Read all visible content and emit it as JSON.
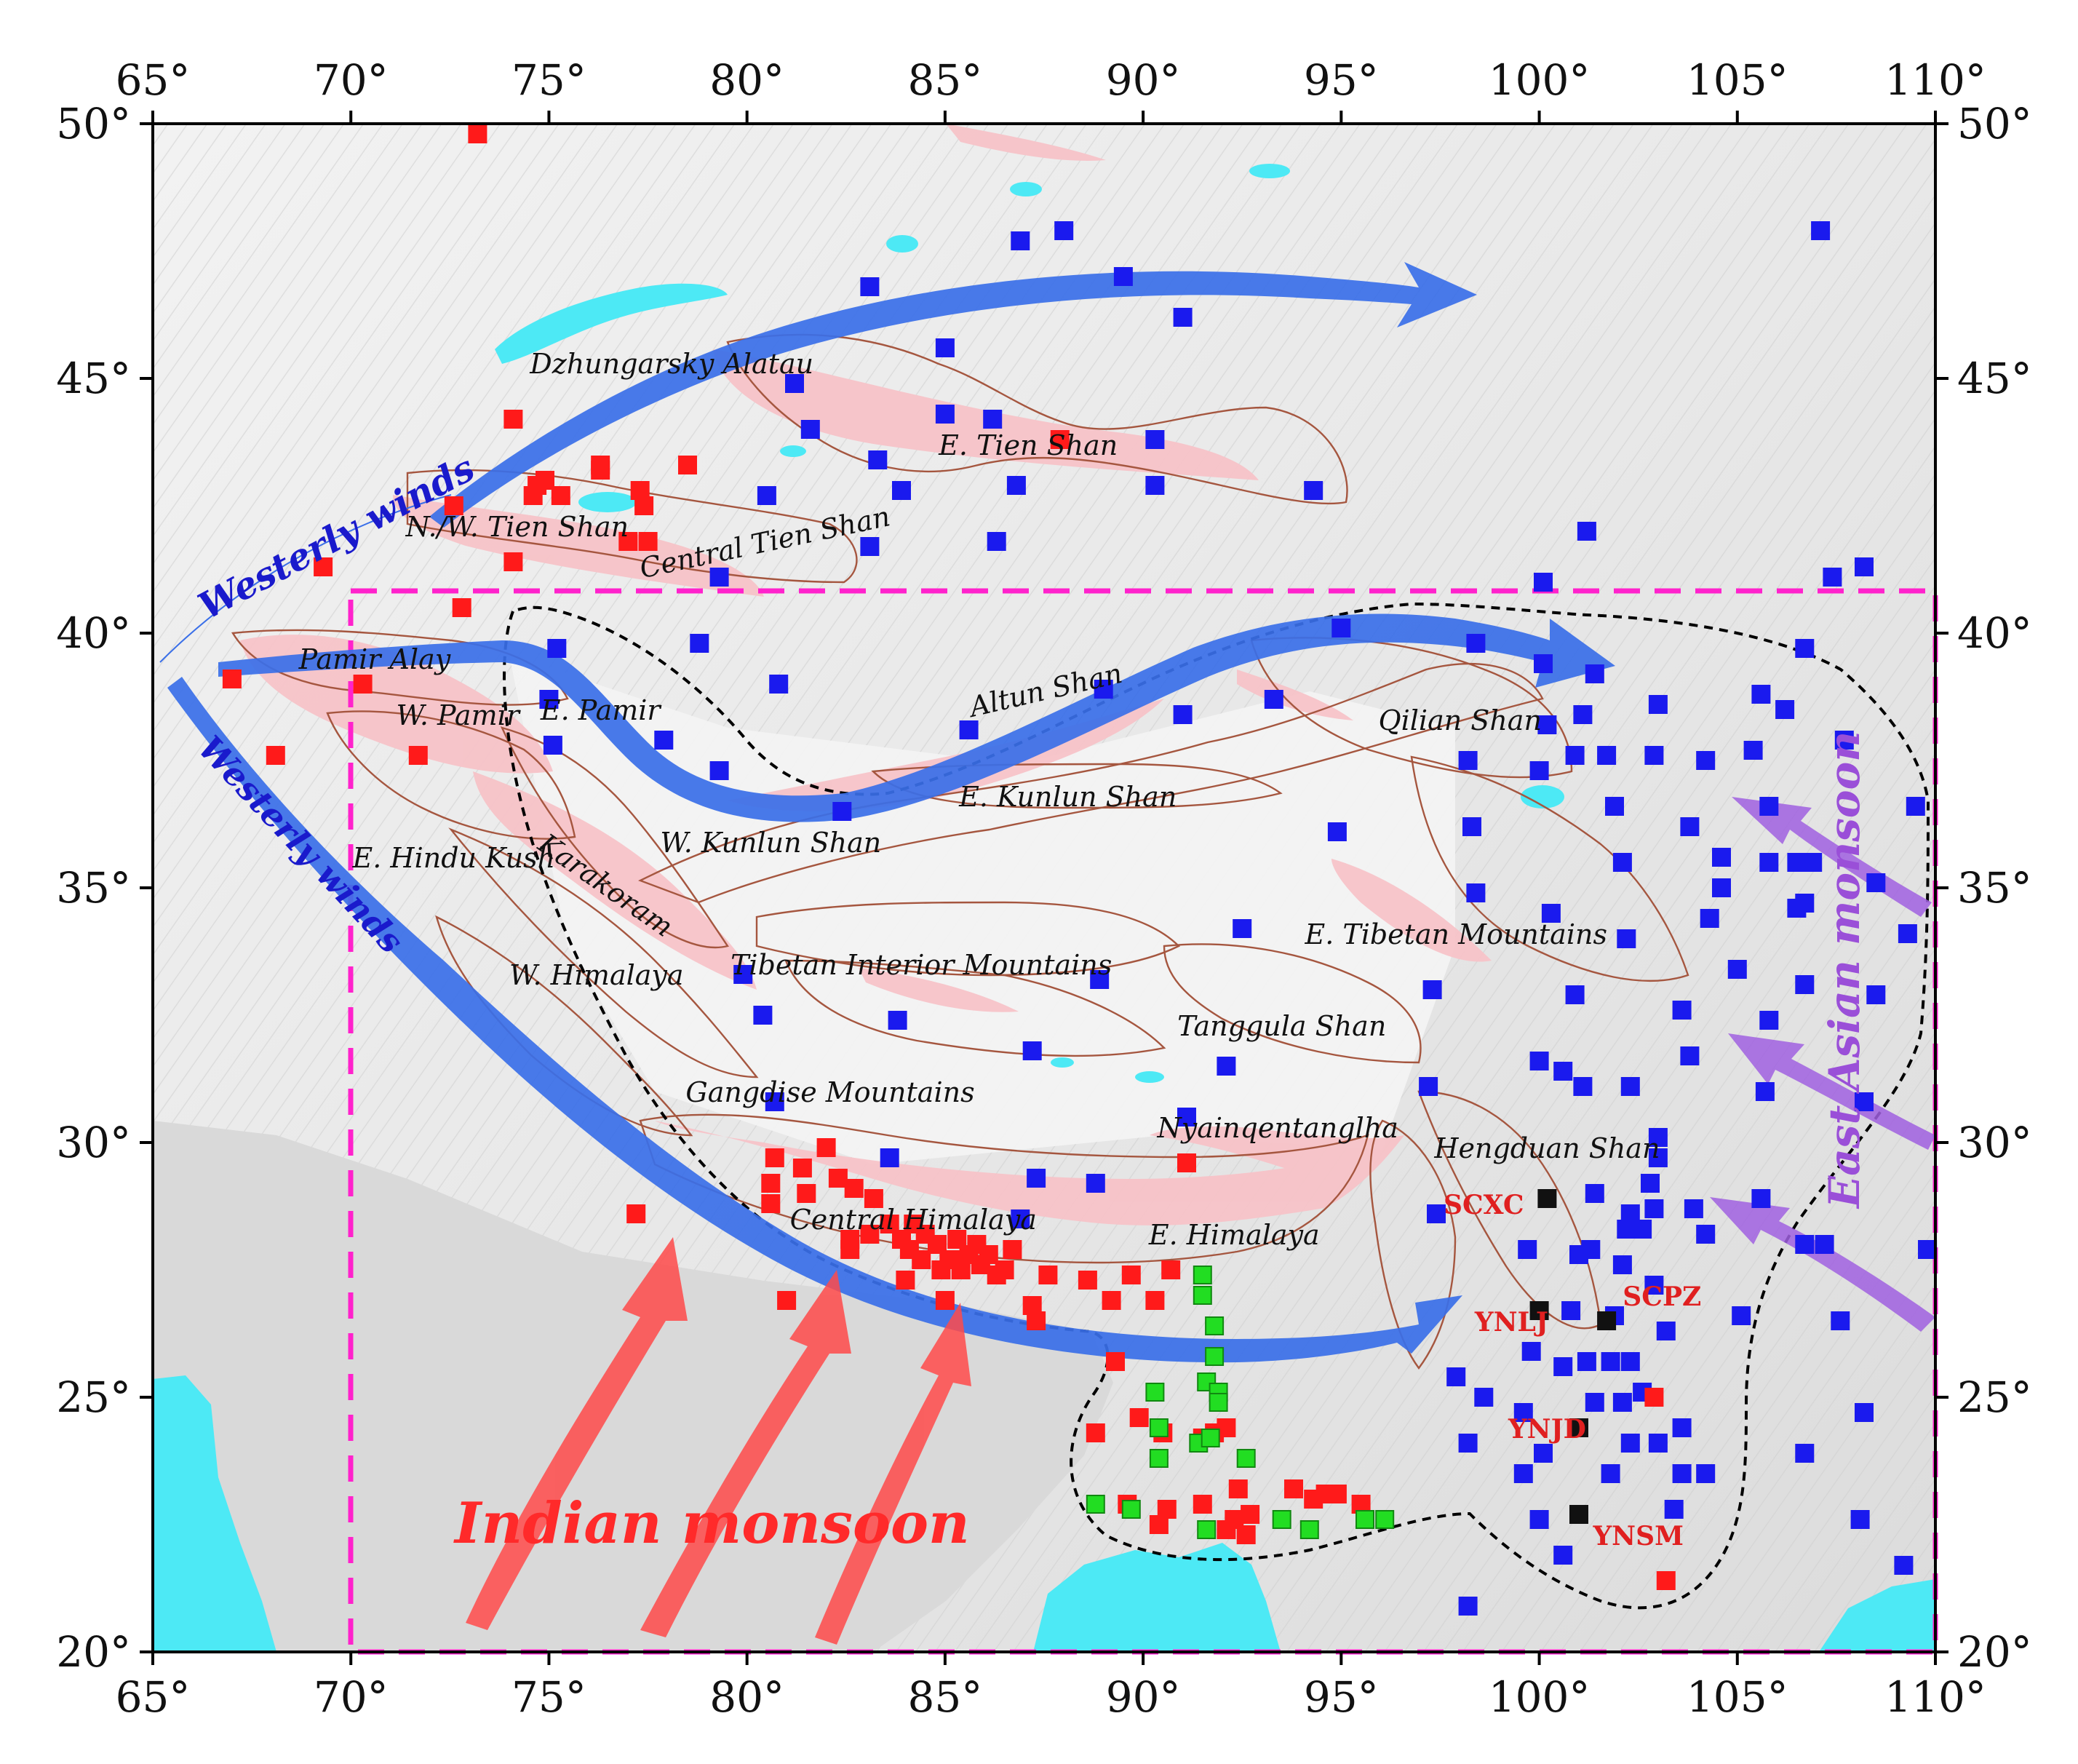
{
  "map": {
    "lon_ticks": [
      "65°",
      "70°",
      "75°",
      "80°",
      "85°",
      "90°",
      "95°",
      "100°",
      "105°",
      "110°"
    ],
    "lat_ticks": [
      "50°",
      "45°",
      "40°",
      "35°",
      "30°",
      "25°",
      "20°"
    ],
    "lon_range": [
      65,
      110
    ],
    "lat_range": [
      20,
      50
    ],
    "colors": {
      "ocean": "#4de9f5",
      "lake": "#4de9f5",
      "glacier": "#f7c3c8",
      "boundary": "#a5563f",
      "frame": "#000000",
      "study_area": "#ff22cc",
      "westerly": "#3a6fe8",
      "indian": "#ff4a4a",
      "east_asian": "#a060e0",
      "station_red": "#ff1a1a",
      "station_blue": "#1a1aee",
      "station_green": "#22dd22",
      "station_black": "#111111"
    },
    "range_labels": [
      {
        "text": "Dzhungarsky Alatau",
        "lon": 78.1,
        "lat": 45.1
      },
      {
        "text": "E. Tien Shan",
        "lon": 87.1,
        "lat": 43.5
      },
      {
        "text": "N./W. Tien Shan",
        "lon": 74.2,
        "lat": 41.9
      },
      {
        "text": "Central Tien Shan",
        "lon": 80.5,
        "lat": 41.6,
        "rotate": -12
      },
      {
        "text": "Pamir Alay",
        "lon": 70.6,
        "lat": 39.3
      },
      {
        "text": "W. Pamir",
        "lon": 72.7,
        "lat": 38.2
      },
      {
        "text": "E. Pamir",
        "lon": 76.3,
        "lat": 38.3
      },
      {
        "text": "Altun Shan",
        "lon": 87.6,
        "lat": 38.7,
        "rotate": -13
      },
      {
        "text": "Qilian Shan",
        "lon": 98.0,
        "lat": 38.1
      },
      {
        "text": "E. Kunlun Shan",
        "lon": 88.1,
        "lat": 36.6
      },
      {
        "text": "W. Kunlun Shan",
        "lon": 80.6,
        "lat": 35.7
      },
      {
        "text": "E. Hindu Kush",
        "lon": 72.6,
        "lat": 35.4
      },
      {
        "text": "Karakoram",
        "lon": 76.3,
        "lat": 34.9,
        "rotate": 35
      },
      {
        "text": "E. Tibetan Mountains",
        "lon": 97.9,
        "lat": 33.9
      },
      {
        "text": "W. Himalaya",
        "lon": 76.2,
        "lat": 33.1
      },
      {
        "text": "Tibetan Interior Mountains",
        "lon": 84.4,
        "lat": 33.3
      },
      {
        "text": "Tanggula Shan",
        "lon": 93.5,
        "lat": 32.1
      },
      {
        "text": "Gangdise Mountains",
        "lon": 82.1,
        "lat": 30.8
      },
      {
        "text": "Nyainqentanglha",
        "lon": 93.4,
        "lat": 30.1
      },
      {
        "text": "Hengduan Shan",
        "lon": 100.2,
        "lat": 29.7
      },
      {
        "text": "Central Himalaya",
        "lon": 84.2,
        "lat": 28.3
      },
      {
        "text": "E. Himalaya",
        "lon": 92.3,
        "lat": 28.0
      }
    ],
    "arrow_labels": {
      "westerly_upper": "Westerly winds",
      "westerly_lower": "Westerly winds",
      "indian": "Indian monsoon",
      "east_asian": "East Asian monsoon"
    },
    "site_labels": [
      {
        "text": "SCXC",
        "lon": 98.6,
        "lat": 28.6
      },
      {
        "text": "SCPZ",
        "lon": 103.1,
        "lat": 26.8
      },
      {
        "text": "YNLJ",
        "lon": 99.3,
        "lat": 26.3
      },
      {
        "text": "YNJD",
        "lon": 100.2,
        "lat": 24.2
      },
      {
        "text": "YNSM",
        "lon": 102.5,
        "lat": 22.1
      }
    ],
    "stations": {
      "red": [
        [
          73.2,
          49.8
        ],
        [
          74.1,
          44.2
        ],
        [
          74.7,
          42.9
        ],
        [
          74.9,
          43.0
        ],
        [
          75.3,
          42.7
        ],
        [
          74.6,
          42.7
        ],
        [
          76.3,
          43.3
        ],
        [
          76.3,
          43.2
        ],
        [
          77.3,
          42.8
        ],
        [
          77.4,
          42.5
        ],
        [
          77.0,
          41.8
        ],
        [
          77.5,
          41.8
        ],
        [
          78.5,
          43.3
        ],
        [
          69.3,
          41.3
        ],
        [
          72.6,
          42.5
        ],
        [
          74.1,
          41.4
        ],
        [
          72.8,
          40.5
        ],
        [
          67.0,
          39.1
        ],
        [
          70.3,
          39.0
        ],
        [
          68.1,
          37.6
        ],
        [
          71.7,
          37.6
        ],
        [
          87.9,
          43.8
        ],
        [
          77.2,
          28.6
        ],
        [
          80.7,
          29.7
        ],
        [
          80.6,
          29.2
        ],
        [
          80.6,
          28.8
        ],
        [
          81.5,
          29.0
        ],
        [
          81.4,
          29.5
        ],
        [
          82.0,
          29.9
        ],
        [
          82.3,
          29.3
        ],
        [
          82.7,
          29.1
        ],
        [
          83.2,
          28.9
        ],
        [
          82.6,
          28.1
        ],
        [
          82.6,
          27.9
        ],
        [
          83.1,
          28.2
        ],
        [
          83.6,
          28.4
        ],
        [
          83.9,
          28.1
        ],
        [
          84.2,
          28.4
        ],
        [
          84.1,
          27.9
        ],
        [
          84.4,
          27.7
        ],
        [
          84.5,
          28.2
        ],
        [
          84.8,
          28.0
        ],
        [
          84.9,
          27.5
        ],
        [
          85.1,
          27.7
        ],
        [
          85.3,
          28.1
        ],
        [
          85.3,
          27.7
        ],
        [
          85.4,
          27.5
        ],
        [
          85.6,
          27.8
        ],
        [
          85.8,
          28.0
        ],
        [
          85.9,
          27.6
        ],
        [
          86.1,
          27.8
        ],
        [
          86.3,
          27.4
        ],
        [
          86.5,
          27.5
        ],
        [
          86.7,
          27.9
        ],
        [
          87.2,
          26.8
        ],
        [
          87.6,
          27.4
        ],
        [
          87.3,
          26.5
        ],
        [
          81.0,
          26.9
        ],
        [
          84.0,
          27.3
        ],
        [
          85.0,
          26.9
        ],
        [
          88.6,
          27.3
        ],
        [
          89.2,
          26.9
        ],
        [
          89.7,
          27.4
        ],
        [
          90.3,
          26.9
        ],
        [
          90.7,
          27.5
        ],
        [
          91.1,
          29.6
        ],
        [
          89.3,
          25.7
        ],
        [
          88.8,
          24.3
        ],
        [
          89.9,
          24.6
        ],
        [
          90.5,
          24.3
        ],
        [
          91.5,
          24.2
        ],
        [
          91.8,
          24.3
        ],
        [
          92.1,
          24.4
        ],
        [
          92.4,
          23.2
        ],
        [
          92.7,
          22.7
        ],
        [
          92.3,
          22.6
        ],
        [
          92.1,
          22.4
        ],
        [
          91.5,
          22.9
        ],
        [
          90.6,
          22.8
        ],
        [
          90.4,
          22.5
        ],
        [
          93.8,
          23.2
        ],
        [
          94.3,
          23.0
        ],
        [
          94.6,
          23.1
        ],
        [
          94.9,
          23.1
        ],
        [
          95.5,
          22.9
        ],
        [
          92.6,
          22.3
        ],
        [
          89.6,
          22.9
        ],
        [
          102.9,
          25.0
        ],
        [
          103.2,
          21.4
        ]
      ],
      "blue": [
        [
          83.1,
          46.8
        ],
        [
          86.9,
          47.7
        ],
        [
          88.0,
          47.9
        ],
        [
          89.5,
          47.0
        ],
        [
          91.0,
          46.2
        ],
        [
          85.0,
          45.6
        ],
        [
          81.2,
          44.9
        ],
        [
          81.6,
          44.0
        ],
        [
          85.0,
          44.3
        ],
        [
          86.2,
          44.2
        ],
        [
          83.3,
          43.4
        ],
        [
          90.3,
          43.8
        ],
        [
          83.9,
          42.8
        ],
        [
          86.8,
          42.9
        ],
        [
          90.3,
          42.9
        ],
        [
          94.3,
          42.8
        ],
        [
          80.5,
          42.7
        ],
        [
          83.1,
          41.7
        ],
        [
          86.3,
          41.8
        ],
        [
          79.3,
          41.1
        ],
        [
          101.2,
          42.0
        ],
        [
          100.1,
          41.0
        ],
        [
          107.4,
          41.1
        ],
        [
          108.2,
          41.3
        ],
        [
          107.1,
          47.9
        ],
        [
          75.2,
          39.7
        ],
        [
          78.8,
          39.8
        ],
        [
          80.8,
          39.0
        ],
        [
          75.0,
          38.7
        ],
        [
          75.1,
          37.8
        ],
        [
          77.9,
          37.9
        ],
        [
          79.3,
          37.3
        ],
        [
          82.4,
          36.5
        ],
        [
          85.6,
          38.1
        ],
        [
          89.0,
          38.9
        ],
        [
          91.0,
          38.4
        ],
        [
          93.3,
          38.7
        ],
        [
          95.0,
          40.1
        ],
        [
          98.4,
          39.8
        ],
        [
          100.1,
          39.4
        ],
        [
          101.4,
          39.2
        ],
        [
          101.1,
          38.4
        ],
        [
          100.2,
          38.2
        ],
        [
          100.0,
          37.3
        ],
        [
          100.9,
          37.6
        ],
        [
          98.2,
          37.5
        ],
        [
          98.3,
          36.2
        ],
        [
          101.7,
          37.6
        ],
        [
          101.9,
          36.6
        ],
        [
          102.9,
          37.6
        ],
        [
          103.0,
          38.6
        ],
        [
          104.2,
          37.5
        ],
        [
          105.4,
          37.7
        ],
        [
          105.6,
          38.8
        ],
        [
          106.2,
          38.5
        ],
        [
          106.7,
          39.7
        ],
        [
          107.7,
          37.9
        ],
        [
          109.5,
          36.6
        ],
        [
          108.5,
          35.1
        ],
        [
          109.3,
          34.1
        ],
        [
          105.8,
          36.6
        ],
        [
          105.8,
          35.5
        ],
        [
          106.5,
          35.5
        ],
        [
          106.9,
          35.5
        ],
        [
          106.5,
          34.6
        ],
        [
          106.7,
          34.7
        ],
        [
          104.6,
          35.6
        ],
        [
          104.6,
          35.0
        ],
        [
          103.8,
          36.2
        ],
        [
          102.1,
          35.5
        ],
        [
          104.3,
          34.4
        ],
        [
          102.2,
          34.0
        ],
        [
          100.3,
          34.5
        ],
        [
          98.4,
          34.9
        ],
        [
          94.9,
          36.1
        ],
        [
          92.5,
          34.2
        ],
        [
          88.9,
          33.2
        ],
        [
          79.9,
          33.3
        ],
        [
          80.4,
          32.5
        ],
        [
          83.8,
          32.4
        ],
        [
          87.2,
          31.8
        ],
        [
          92.1,
          31.5
        ],
        [
          97.3,
          33.0
        ],
        [
          100.9,
          32.9
        ],
        [
          103.6,
          32.6
        ],
        [
          105.0,
          33.4
        ],
        [
          105.8,
          32.4
        ],
        [
          106.7,
          33.1
        ],
        [
          108.5,
          32.9
        ],
        [
          100.0,
          31.6
        ],
        [
          100.6,
          31.4
        ],
        [
          101.1,
          31.1
        ],
        [
          102.3,
          31.1
        ],
        [
          103.8,
          31.7
        ],
        [
          105.7,
          31.0
        ],
        [
          108.2,
          30.8
        ],
        [
          97.2,
          31.1
        ],
        [
          91.1,
          30.5
        ],
        [
          80.7,
          30.8
        ],
        [
          83.6,
          29.7
        ],
        [
          87.3,
          29.3
        ],
        [
          88.8,
          29.2
        ],
        [
          86.9,
          28.5
        ],
        [
          97.4,
          28.6
        ],
        [
          99.7,
          27.9
        ],
        [
          101.0,
          27.8
        ],
        [
          101.3,
          27.9
        ],
        [
          102.1,
          27.6
        ],
        [
          102.2,
          28.3
        ],
        [
          102.3,
          28.6
        ],
        [
          102.6,
          28.3
        ],
        [
          102.9,
          28.7
        ],
        [
          102.8,
          29.2
        ],
        [
          103.0,
          30.1
        ],
        [
          101.4,
          29.0
        ],
        [
          103.0,
          29.7
        ],
        [
          103.9,
          28.7
        ],
        [
          104.2,
          28.2
        ],
        [
          105.1,
          26.6
        ],
        [
          105.6,
          28.9
        ],
        [
          106.7,
          28.0
        ],
        [
          107.2,
          28.0
        ],
        [
          107.6,
          26.5
        ],
        [
          109.8,
          27.9
        ],
        [
          103.2,
          26.3
        ],
        [
          102.9,
          27.2
        ],
        [
          101.9,
          26.6
        ],
        [
          100.8,
          26.7
        ],
        [
          97.9,
          25.4
        ],
        [
          98.6,
          25.0
        ],
        [
          99.8,
          25.9
        ],
        [
          100.6,
          25.6
        ],
        [
          101.2,
          25.7
        ],
        [
          101.8,
          25.7
        ],
        [
          102.3,
          25.7
        ],
        [
          102.6,
          25.1
        ],
        [
          102.1,
          24.9
        ],
        [
          101.4,
          24.9
        ],
        [
          99.6,
          24.7
        ],
        [
          98.2,
          24.1
        ],
        [
          99.6,
          23.5
        ],
        [
          100.1,
          23.9
        ],
        [
          101.8,
          23.5
        ],
        [
          102.3,
          24.1
        ],
        [
          103.0,
          24.1
        ],
        [
          103.6,
          24.4
        ],
        [
          103.6,
          23.5
        ],
        [
          104.2,
          23.5
        ],
        [
          103.4,
          22.8
        ],
        [
          100.0,
          22.6
        ],
        [
          100.6,
          21.9
        ],
        [
          98.2,
          20.9
        ],
        [
          106.7,
          23.9
        ],
        [
          108.2,
          24.7
        ],
        [
          108.1,
          22.6
        ],
        [
          109.2,
          21.7
        ],
        [
          109.8,
          27.9
        ]
      ],
      "green": [
        [
          91.5,
          27.4
        ],
        [
          91.5,
          27.0
        ],
        [
          91.8,
          26.4
        ],
        [
          91.8,
          25.8
        ],
        [
          91.6,
          25.3
        ],
        [
          91.9,
          25.1
        ],
        [
          91.9,
          24.9
        ],
        [
          90.3,
          25.1
        ],
        [
          90.4,
          24.4
        ],
        [
          90.4,
          23.8
        ],
        [
          91.4,
          24.1
        ],
        [
          91.7,
          24.2
        ],
        [
          92.6,
          23.8
        ],
        [
          88.8,
          22.9
        ],
        [
          89.7,
          22.8
        ],
        [
          91.6,
          22.4
        ],
        [
          93.5,
          22.6
        ],
        [
          94.2,
          22.4
        ],
        [
          95.6,
          22.6
        ],
        [
          96.1,
          22.6
        ]
      ],
      "black": [
        [
          100.2,
          28.9
        ],
        [
          101.7,
          26.5
        ],
        [
          101.0,
          24.4
        ],
        [
          101.0,
          22.7
        ],
        [
          100.0,
          26.7
        ]
      ]
    }
  }
}
